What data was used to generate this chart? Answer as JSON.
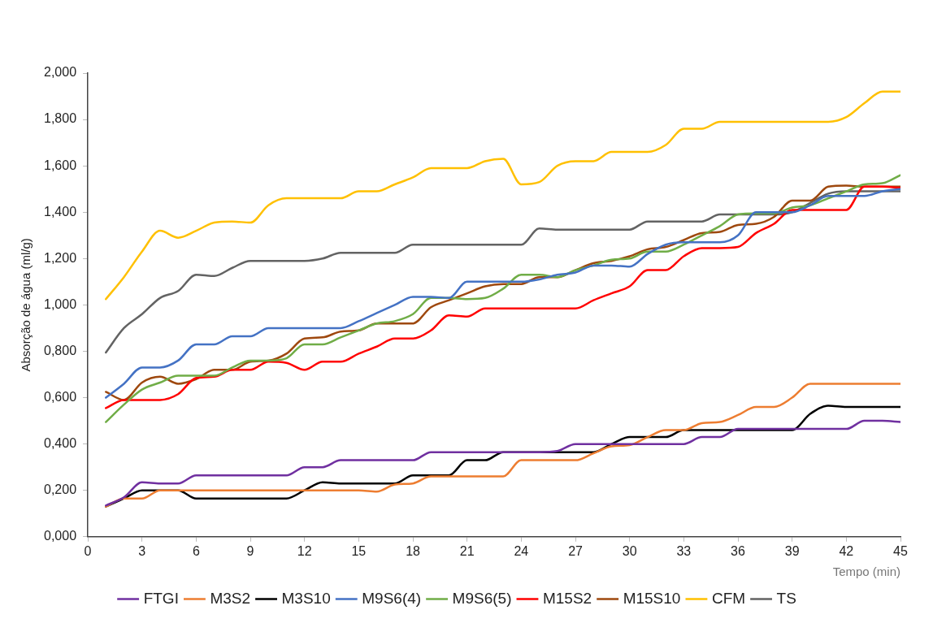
{
  "chart_data": {
    "type": "line",
    "xlabel": "Tempo (min)",
    "ylabel": "Absorção de água (ml/g)",
    "x": [
      1,
      2,
      3,
      4,
      5,
      6,
      7,
      8,
      9,
      10,
      11,
      12,
      13,
      14,
      15,
      16,
      17,
      18,
      19,
      20,
      21,
      22,
      23,
      24,
      25,
      26,
      27,
      28,
      29,
      30,
      31,
      32,
      33,
      34,
      35,
      36,
      37,
      38,
      39,
      40,
      41,
      42,
      43,
      44,
      45
    ],
    "xlim": [
      0,
      45
    ],
    "xticks": [
      0,
      3,
      6,
      9,
      12,
      15,
      18,
      21,
      24,
      27,
      30,
      33,
      36,
      39,
      42,
      45
    ],
    "ylim": [
      0,
      2
    ],
    "yticks": [
      {
        "value": 0,
        "label": "0,000"
      },
      {
        "value": 0.2,
        "label": "0,200"
      },
      {
        "value": 0.4,
        "label": "0,400"
      },
      {
        "value": 0.6,
        "label": "0,600"
      },
      {
        "value": 0.8,
        "label": "0,800"
      },
      {
        "value": 1,
        "label": "1,000"
      },
      {
        "value": 1.2,
        "label": "1,200"
      },
      {
        "value": 1.4,
        "label": "1,400"
      },
      {
        "value": 1.6,
        "label": "1,600"
      },
      {
        "value": 1.8,
        "label": "1,800"
      },
      {
        "value": 2,
        "label": "2,000"
      }
    ],
    "grid": false,
    "legend": "bottom",
    "marker": "none",
    "line_style": "solid",
    "series": [
      {
        "name": "FTGI",
        "color": "#7030a0",
        "values": [
          0.135,
          0.17,
          0.235,
          0.23,
          0.23,
          0.265,
          0.265,
          0.265,
          0.265,
          0.265,
          0.265,
          0.3,
          0.3,
          0.33,
          0.33,
          0.33,
          0.33,
          0.33,
          0.365,
          0.365,
          0.365,
          0.365,
          0.365,
          0.365,
          0.365,
          0.37,
          0.4,
          0.4,
          0.4,
          0.4,
          0.4,
          0.4,
          0.4,
          0.43,
          0.43,
          0.465,
          0.465,
          0.465,
          0.465,
          0.465,
          0.465,
          0.465,
          0.5,
          0.5,
          0.495
        ]
      },
      {
        "name": "M3S2",
        "color": "#ed7d31",
        "values": [
          0.13,
          0.165,
          0.165,
          0.2,
          0.2,
          0.2,
          0.2,
          0.2,
          0.2,
          0.2,
          0.2,
          0.2,
          0.2,
          0.2,
          0.2,
          0.195,
          0.225,
          0.23,
          0.26,
          0.26,
          0.26,
          0.26,
          0.26,
          0.33,
          0.33,
          0.33,
          0.33,
          0.36,
          0.39,
          0.395,
          0.43,
          0.46,
          0.46,
          0.49,
          0.495,
          0.525,
          0.56,
          0.56,
          0.6,
          0.66,
          0.66,
          0.66,
          0.66,
          0.66,
          0.66
        ]
      },
      {
        "name": "M3S10",
        "color": "#000000",
        "values": [
          0.13,
          0.165,
          0.2,
          0.2,
          0.2,
          0.165,
          0.165,
          0.165,
          0.165,
          0.165,
          0.165,
          0.2,
          0.235,
          0.23,
          0.23,
          0.23,
          0.23,
          0.265,
          0.265,
          0.265,
          0.33,
          0.33,
          0.365,
          0.365,
          0.365,
          0.365,
          0.365,
          0.365,
          0.4,
          0.43,
          0.43,
          0.43,
          0.46,
          0.46,
          0.46,
          0.46,
          0.46,
          0.46,
          0.46,
          0.53,
          0.565,
          0.56,
          0.56,
          0.56,
          0.56
        ]
      },
      {
        "name": "M9S6(4)",
        "color": "#4472c4",
        "values": [
          0.6,
          0.66,
          0.73,
          0.73,
          0.76,
          0.83,
          0.83,
          0.865,
          0.865,
          0.9,
          0.9,
          0.9,
          0.9,
          0.9,
          0.93,
          0.965,
          1,
          1.035,
          1.035,
          1.03,
          1.1,
          1.1,
          1.1,
          1.1,
          1.11,
          1.13,
          1.14,
          1.17,
          1.17,
          1.165,
          1.22,
          1.26,
          1.27,
          1.27,
          1.27,
          1.3,
          1.4,
          1.4,
          1.4,
          1.43,
          1.47,
          1.47,
          1.47,
          1.49,
          1.5
        ]
      },
      {
        "name": "M9S6(5)",
        "color": "#70ad47",
        "values": [
          0.495,
          0.57,
          0.635,
          0.665,
          0.695,
          0.695,
          0.695,
          0.73,
          0.76,
          0.76,
          0.77,
          0.83,
          0.83,
          0.86,
          0.89,
          0.92,
          0.93,
          0.96,
          1.03,
          1.03,
          1.025,
          1.03,
          1.07,
          1.13,
          1.13,
          1.12,
          1.15,
          1.17,
          1.195,
          1.2,
          1.23,
          1.23,
          1.26,
          1.3,
          1.34,
          1.39,
          1.395,
          1.395,
          1.42,
          1.43,
          1.46,
          1.49,
          1.52,
          1.525,
          1.56
        ]
      },
      {
        "name": "M15S2",
        "color": "#ff0000",
        "values": [
          0.555,
          0.59,
          0.59,
          0.59,
          0.615,
          0.685,
          0.69,
          0.72,
          0.72,
          0.755,
          0.75,
          0.72,
          0.755,
          0.755,
          0.79,
          0.82,
          0.855,
          0.855,
          0.89,
          0.955,
          0.95,
          0.985,
          0.985,
          0.985,
          0.985,
          0.985,
          0.985,
          1.02,
          1.05,
          1.08,
          1.15,
          1.15,
          1.21,
          1.245,
          1.245,
          1.25,
          1.31,
          1.35,
          1.41,
          1.41,
          1.41,
          1.41,
          1.51,
          1.51,
          1.505
        ]
      },
      {
        "name": "M15S10",
        "color": "#9e480e",
        "values": [
          0.625,
          0.59,
          0.665,
          0.69,
          0.66,
          0.68,
          0.72,
          0.72,
          0.755,
          0.76,
          0.79,
          0.855,
          0.86,
          0.885,
          0.89,
          0.92,
          0.92,
          0.92,
          0.99,
          1.02,
          1.05,
          1.08,
          1.09,
          1.09,
          1.12,
          1.12,
          1.15,
          1.18,
          1.19,
          1.21,
          1.24,
          1.25,
          1.28,
          1.31,
          1.315,
          1.345,
          1.35,
          1.38,
          1.45,
          1.45,
          1.51,
          1.515,
          1.51,
          1.51,
          1.51
        ]
      },
      {
        "name": "CFM",
        "color": "#ffc000",
        "values": [
          1.025,
          1.12,
          1.23,
          1.32,
          1.29,
          1.32,
          1.355,
          1.36,
          1.355,
          1.43,
          1.46,
          1.46,
          1.46,
          1.46,
          1.49,
          1.49,
          1.52,
          1.55,
          1.59,
          1.59,
          1.59,
          1.62,
          1.63,
          1.52,
          1.53,
          1.6,
          1.62,
          1.62,
          1.66,
          1.66,
          1.66,
          1.69,
          1.76,
          1.76,
          1.79,
          1.79,
          1.79,
          1.79,
          1.79,
          1.79,
          1.79,
          1.81,
          1.87,
          1.92,
          1.92
        ]
      },
      {
        "name": "TS",
        "color": "#636363",
        "values": [
          0.795,
          0.9,
          0.96,
          1.03,
          1.06,
          1.13,
          1.125,
          1.16,
          1.19,
          1.19,
          1.19,
          1.19,
          1.2,
          1.225,
          1.225,
          1.225,
          1.225,
          1.26,
          1.26,
          1.26,
          1.26,
          1.26,
          1.26,
          1.26,
          1.33,
          1.325,
          1.325,
          1.325,
          1.325,
          1.325,
          1.36,
          1.36,
          1.36,
          1.36,
          1.39,
          1.39,
          1.39,
          1.39,
          1.4,
          1.44,
          1.48,
          1.49,
          1.49,
          1.49,
          1.49
        ]
      }
    ]
  }
}
